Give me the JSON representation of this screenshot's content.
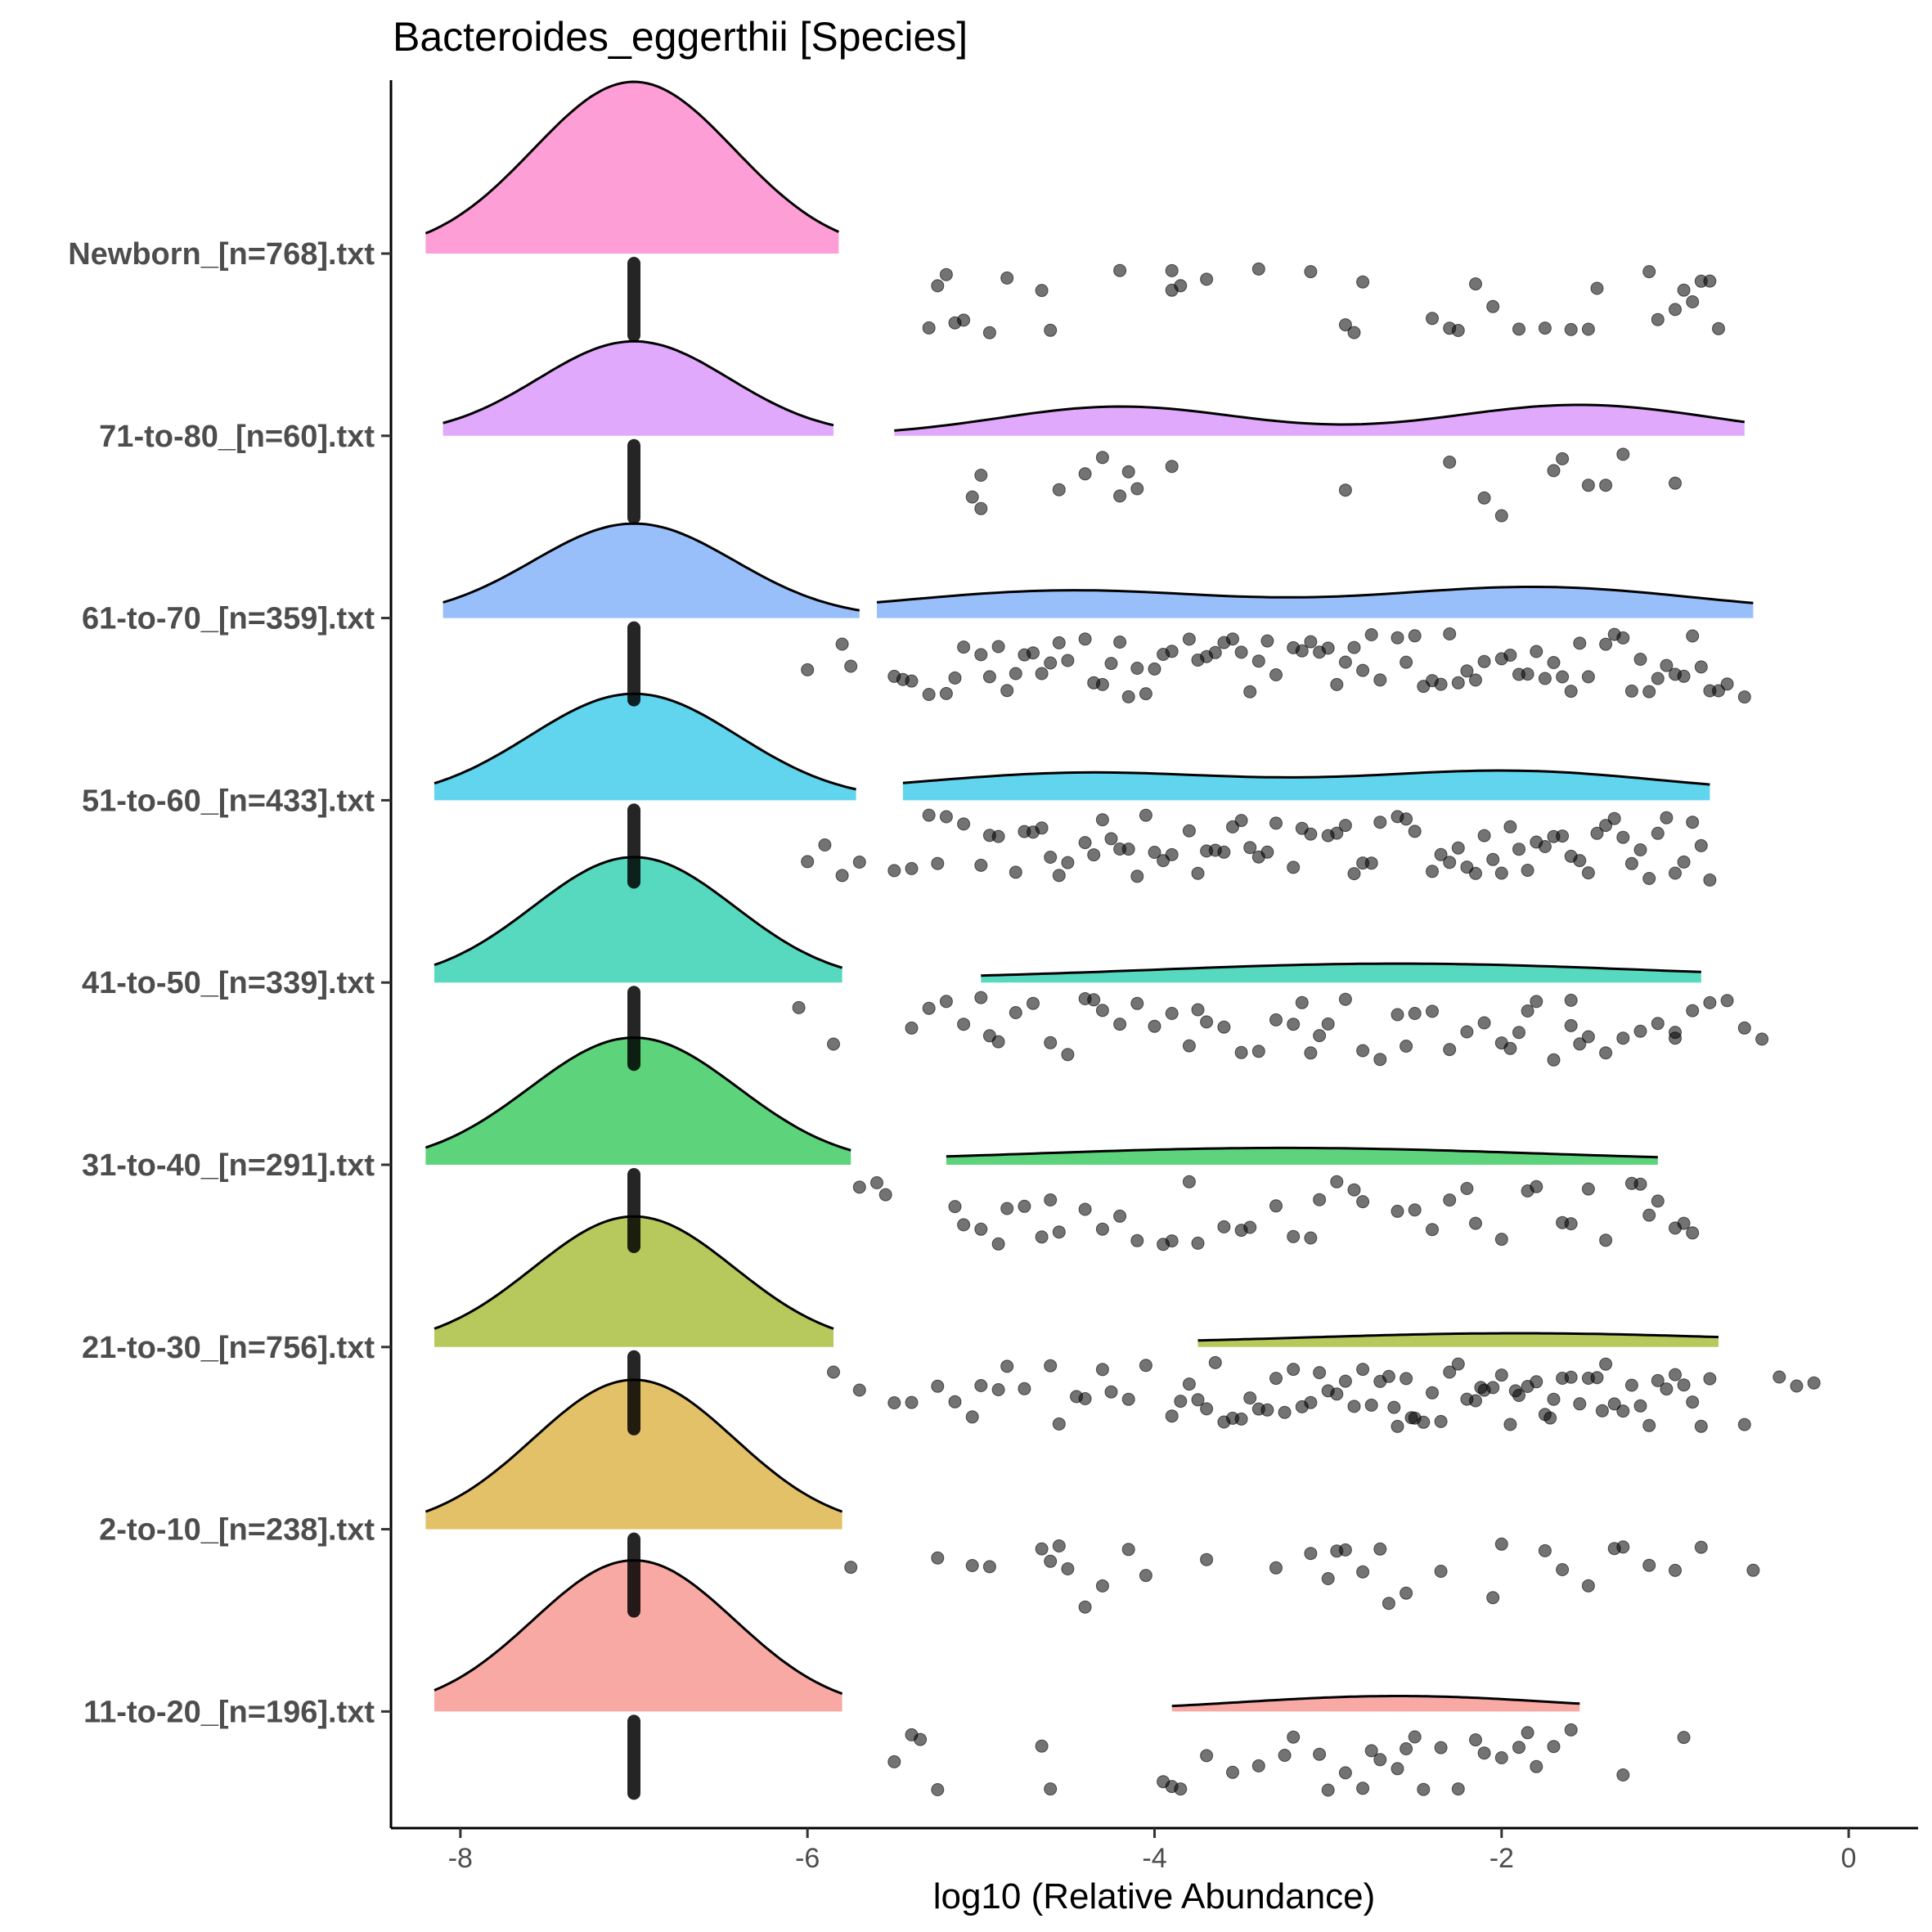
{
  "chart_data": {
    "type": "raincloud",
    "title": "Bacteroides_eggerthii [Species]",
    "xlabel": "log10 (Relative Abundance)",
    "ylabel": "",
    "xlim": [
      -8.4,
      0.4
    ],
    "xticks": [
      -8,
      -6,
      -4,
      -2,
      0
    ],
    "xtick_labels": [
      "-8",
      "-6",
      "-4",
      "-2",
      "0"
    ],
    "grid": false,
    "legend": "none",
    "groups": [
      {
        "label": "Newborn_[n=768].txt",
        "color": "#fe9ed6",
        "zero_value": -7,
        "main_density": {
          "mean": -7.0,
          "sd": 0.58,
          "from": -8.2,
          "to": -5.82,
          "height": 1.0
        },
        "tail_density": null,
        "points": [
          -5.2,
          -5.15,
          -4.6,
          -3.9,
          -3.4,
          -3.1,
          -2.4,
          -2.05,
          -1.75,
          -1.1,
          -0.95,
          -0.8,
          -5.25,
          -5.1,
          -4.95,
          -4.85,
          -4.65,
          -4.2,
          -3.85,
          -3.7,
          -2.9,
          -2.8,
          -2.3,
          -2.15,
          -1.9,
          -1.6,
          -1.45,
          -1.0,
          -0.9,
          -0.85,
          -5.3,
          -3.9,
          -2.85,
          -2.25,
          -1.5,
          -1.15,
          -0.75
        ]
      },
      {
        "label": "71-to-80_[n=60].txt",
        "color": "#e1a9fc",
        "zero_value": -7,
        "main_density": {
          "mean": -7.0,
          "sd": 0.55,
          "from": -8.1,
          "to": -5.85,
          "height": 0.55
        },
        "tail_density": {
          "from": -5.5,
          "to": -0.6,
          "modes": [
            [
              -4.2,
              0.7,
              0.17
            ],
            [
              -1.55,
              0.75,
              0.18
            ]
          ],
          "base": 0.0
        },
        "points": [
          -5.0,
          -4.4,
          -4.3,
          -4.2,
          -4.1,
          -3.9,
          -2.3,
          -2.0,
          -1.7,
          -1.4,
          -5.05,
          -2.9,
          -1.0,
          -5.0,
          -4.55,
          -4.15,
          -2.1,
          -1.65,
          -1.5,
          -1.3
        ]
      },
      {
        "label": "61-to-70_[n=359].txt",
        "color": "#99bffb",
        "zero_value": -7,
        "main_density": {
          "mean": -7.0,
          "sd": 0.58,
          "from": -8.1,
          "to": -5.7,
          "height": 0.55
        },
        "tail_density": {
          "from": -5.6,
          "to": -0.55,
          "modes": [
            [
              -4.5,
              0.9,
              0.13
            ],
            [
              -1.8,
              0.9,
              0.15
            ]
          ],
          "base": 0.03
        },
        "points": [
          -6.0,
          -5.8,
          -5.5,
          -5.3,
          -5.0,
          -4.8,
          -4.6,
          -4.4,
          -4.2,
          -4.0,
          -3.8,
          -3.6,
          -3.4,
          -3.2,
          -3.0,
          -2.8,
          -2.6,
          -2.4,
          -2.2,
          -2.0,
          -1.8,
          -1.6,
          -1.4,
          -1.2,
          -1.0,
          -0.8,
          -0.6,
          -5.75,
          -5.45,
          -5.15,
          -4.9,
          -4.7,
          -4.5,
          -4.3,
          -4.1,
          -3.9,
          -3.7,
          -3.5,
          -3.3,
          -3.1,
          -2.9,
          -2.7,
          -2.5,
          -2.3,
          -2.1,
          -1.9,
          -1.7,
          -1.5,
          -1.3,
          -1.1,
          -0.9,
          -0.7,
          -5.4,
          -5.2,
          -4.95,
          -4.75,
          -4.55,
          -4.35,
          -4.15,
          -3.95,
          -3.75,
          -3.55,
          -3.35,
          -3.15,
          -2.95,
          -2.75,
          -2.55,
          -2.35,
          -2.15,
          -1.95,
          -1.75,
          -1.55,
          -1.35,
          -1.15,
          -0.95,
          -0.75,
          -5.1,
          -4.85,
          -4.25,
          -3.65,
          -3.05,
          -2.45,
          -1.85,
          -1.25,
          -0.85,
          -4.65,
          -4.05,
          -3.45,
          -2.85,
          -2.25,
          -1.65,
          -1.05
        ]
      },
      {
        "label": "51-to-60_[n=433].txt",
        "color": "#61d4ee",
        "zero_value": -7,
        "main_density": {
          "mean": -7.0,
          "sd": 0.6,
          "from": -8.15,
          "to": -5.72,
          "height": 0.62
        },
        "tail_density": {
          "from": -5.45,
          "to": -0.8,
          "modes": [
            [
              -4.4,
              0.9,
              0.12
            ],
            [
              -1.95,
              0.85,
              0.13
            ]
          ],
          "base": 0.04
        },
        "points": [
          -6.0,
          -5.9,
          -5.7,
          -5.5,
          -5.3,
          -5.1,
          -4.9,
          -4.7,
          -4.5,
          -4.3,
          -4.1,
          -3.9,
          -3.7,
          -3.5,
          -3.3,
          -3.1,
          -2.9,
          -2.7,
          -2.5,
          -2.3,
          -2.1,
          -1.9,
          -1.7,
          -1.5,
          -1.3,
          -1.1,
          -0.9,
          -0.8,
          -5.8,
          -5.2,
          -5.0,
          -4.8,
          -4.6,
          -4.4,
          -4.2,
          -4.0,
          -3.8,
          -3.6,
          -3.4,
          -3.2,
          -3.0,
          -2.8,
          -2.6,
          -2.4,
          -2.2,
          -2.0,
          -1.8,
          -1.6,
          -1.4,
          -1.2,
          -1.0,
          -0.85,
          -5.25,
          -4.95,
          -4.75,
          -4.55,
          -4.35,
          -4.15,
          -3.95,
          -3.75,
          -3.55,
          -3.35,
          -3.15,
          -2.95,
          -2.75,
          -2.55,
          -2.35,
          -2.15,
          -1.95,
          -1.75,
          -1.55,
          -1.35,
          -1.15,
          -0.95,
          -5.4,
          -4.65,
          -4.05,
          -3.45,
          -2.85,
          -2.25,
          -1.85,
          -1.65,
          -1.45,
          -1.05,
          -4.25,
          -3.65,
          -2.05,
          -1.25
        ]
      },
      {
        "label": "41-to-50_[n=339].txt",
        "color": "#57d9bf",
        "zero_value": -7,
        "main_density": {
          "mean": -7.0,
          "sd": 0.58,
          "from": -8.15,
          "to": -5.8,
          "height": 0.73
        },
        "tail_density": {
          "from": -5.0,
          "to": -0.85,
          "modes": [
            [
              -2.6,
              1.4,
              0.09
            ]
          ],
          "base": 0.02
        },
        "points": [
          -6.05,
          -5.85,
          -5.4,
          -5.3,
          -5.1,
          -4.9,
          -4.7,
          -4.5,
          -4.3,
          -4.1,
          -3.9,
          -3.7,
          -3.5,
          -3.3,
          -3.1,
          -2.9,
          -2.7,
          -2.5,
          -2.3,
          -2.1,
          -1.9,
          -1.7,
          -1.5,
          -1.3,
          -1.1,
          -0.9,
          -0.7,
          -0.5,
          -5.2,
          -5.0,
          -4.8,
          -4.6,
          -4.4,
          -4.2,
          -4.0,
          -3.8,
          -3.6,
          -3.4,
          -3.2,
          -3.0,
          -2.8,
          -2.6,
          -2.4,
          -2.2,
          -2.0,
          -1.8,
          -1.6,
          -1.4,
          -1.2,
          -1.0,
          -0.8,
          -0.6,
          -4.95,
          -4.35,
          -3.75,
          -3.15,
          -2.55,
          -1.95,
          -1.55,
          -1.0,
          -3.05,
          -1.85,
          -1.6
        ]
      },
      {
        "label": "31-to-40_[n=291].txt",
        "color": "#5dd37b",
        "zero_value": -7,
        "main_density": {
          "mean": -7.0,
          "sd": 0.6,
          "from": -8.2,
          "to": -5.75,
          "height": 0.74
        },
        "tail_density": {
          "from": -5.2,
          "to": -1.1,
          "modes": [
            [
              -3.8,
              1.2,
              0.05
            ],
            [
              -2.5,
              1.2,
              0.04
            ]
          ],
          "base": 0.02
        },
        "points": [
          -5.7,
          -5.6,
          -5.55,
          -5.1,
          -5.0,
          -4.9,
          -4.75,
          -4.6,
          -4.4,
          -4.3,
          -4.1,
          -3.95,
          -3.8,
          -3.6,
          -3.45,
          -3.3,
          -3.1,
          -2.95,
          -2.8,
          -2.6,
          -2.4,
          -2.2,
          -2.0,
          -1.8,
          -1.6,
          -1.4,
          -1.2,
          -1.1,
          -1.0,
          -0.9,
          -5.15,
          -4.85,
          -4.55,
          -4.2,
          -3.9,
          -3.5,
          -3.2,
          -2.85,
          -2.5,
          -2.15,
          -1.85,
          -1.5,
          -1.15,
          -0.95,
          -4.65,
          -3.75,
          -3.05,
          -2.3,
          -1.65,
          -1.25
        ]
      },
      {
        "label": "21-to-30_[n=756].txt",
        "color": "#b7c85c",
        "zero_value": -7,
        "main_density": {
          "mean": -7.0,
          "sd": 0.58,
          "from": -8.15,
          "to": -5.85,
          "height": 0.76
        },
        "tail_density": {
          "from": -3.75,
          "to": -0.75,
          "modes": [
            [
              -1.9,
              1.2,
              0.06
            ]
          ],
          "base": 0.02
        },
        "points": [
          -5.85,
          -5.7,
          -5.5,
          -5.4,
          -5.25,
          -5.15,
          -5.0,
          -4.9,
          -4.75,
          -4.6,
          -4.55,
          -4.4,
          -4.3,
          -4.15,
          -4.05,
          -3.9,
          -3.8,
          -3.7,
          -3.6,
          -3.5,
          -3.4,
          -3.3,
          -3.2,
          -3.1,
          -3.0,
          -2.9,
          -2.8,
          -2.7,
          -2.6,
          -2.5,
          -2.4,
          -2.3,
          -2.2,
          -2.1,
          -2.0,
          -1.9,
          -1.8,
          -1.7,
          -1.6,
          -1.5,
          -1.4,
          -1.3,
          -1.2,
          -1.1,
          -1.0,
          -0.9,
          -0.8,
          -0.6,
          -0.4,
          -0.3,
          -0.2,
          -3.85,
          -3.65,
          -3.45,
          -3.25,
          -3.05,
          -2.85,
          -2.65,
          -2.45,
          -2.25,
          -2.05,
          -1.85,
          -1.65,
          -1.45,
          -1.25,
          -1.05,
          -0.85,
          -3.75,
          -3.55,
          -3.35,
          -3.15,
          -2.95,
          -2.75,
          -2.55,
          -2.35,
          -2.15,
          -1.95,
          -1.75,
          -1.55,
          -1.35,
          -1.15,
          -0.95,
          -4.45,
          -4.85,
          -5.05,
          -4.25,
          -2.62,
          -2.12,
          -1.72,
          -1.42,
          -2.52,
          -1.92
        ]
      },
      {
        "label": "2-to-10_[n=238].txt",
        "color": "#e3c169",
        "zero_value": -7,
        "main_density": {
          "mean": -7.0,
          "sd": 0.58,
          "from": -8.2,
          "to": -5.8,
          "height": 0.87
        },
        "tail_density": null,
        "points": [
          -5.75,
          -5.25,
          -5.05,
          -4.95,
          -4.65,
          -4.6,
          -4.55,
          -4.5,
          -4.4,
          -4.3,
          -4.15,
          -4.05,
          -3.7,
          -3.3,
          -3.1,
          -3.0,
          -2.95,
          -2.8,
          -2.7,
          -2.55,
          -2.35,
          -2.05,
          -2.0,
          -1.75,
          -1.65,
          -1.5,
          -1.35,
          -1.3,
          -1.15,
          -1.0,
          -0.85,
          -0.55,
          -2.9,
          -2.65
        ]
      },
      {
        "label": "11-to-20_[n=196].txt",
        "color": "#f8a9a3",
        "zero_value": -7,
        "main_density": {
          "mean": -7.0,
          "sd": 0.58,
          "from": -8.15,
          "to": -5.8,
          "height": 0.88
        },
        "tail_density": {
          "from": -3.9,
          "to": -1.55,
          "modes": [
            [
              -2.6,
              0.9,
              0.09
            ]
          ],
          "base": 0.0
        },
        "points": [
          -5.5,
          -5.4,
          -5.35,
          -5.25,
          -4.65,
          -4.6,
          -3.95,
          -3.85,
          -3.7,
          -3.55,
          -3.4,
          -3.2,
          -3.0,
          -2.9,
          -2.8,
          -2.7,
          -2.6,
          -2.5,
          -2.35,
          -2.25,
          -2.1,
          -2.0,
          -1.9,
          -1.8,
          -1.6,
          -1.3,
          -0.95,
          -3.9,
          -3.05,
          -2.75,
          -2.45,
          -2.15,
          -1.85,
          -1.7,
          -3.25,
          -2.55
        ]
      }
    ]
  }
}
